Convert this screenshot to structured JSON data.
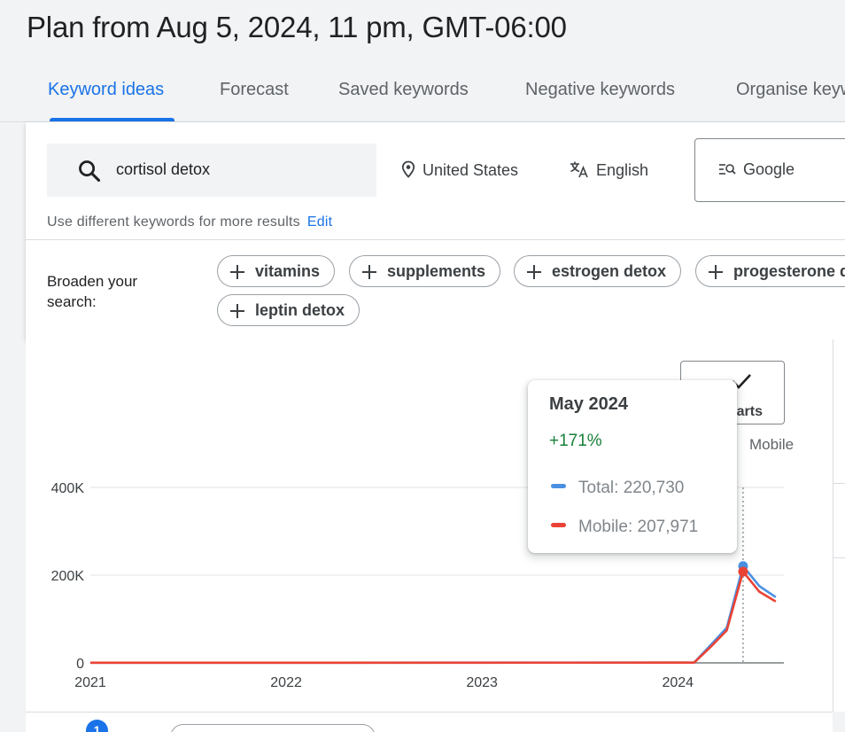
{
  "title": "Plan from Aug 5, 2024, 11 pm, GMT-06:00",
  "tabs": [
    {
      "label": "Keyword ideas",
      "active": true
    },
    {
      "label": "Forecast"
    },
    {
      "label": "Saved keywords"
    },
    {
      "label": "Negative keywords"
    },
    {
      "label": "Organise keywords"
    }
  ],
  "search": {
    "value": "cortisol detox"
  },
  "filters": {
    "location": "United States",
    "language": "English",
    "network": "Google"
  },
  "hint": {
    "text": "Use different keywords for more results",
    "edit_label": "Edit"
  },
  "broaden": {
    "label": "Broaden your search:",
    "chips": [
      "vitamins",
      "supplements",
      "estrogen detox",
      "progesterone detox",
      "leptin detox"
    ]
  },
  "charts_button": {
    "label": "Charts"
  },
  "legend": {
    "mobile": "Mobile"
  },
  "tooltip": {
    "title": "May 2024",
    "change": "+171%",
    "total": "Total: 220,730",
    "mobile": "Mobile: 207,971"
  },
  "pager": {
    "badge": "1"
  },
  "colors": {
    "accent": "#1a73e8",
    "total": "#4a90e2",
    "mobile": "#ea4335",
    "positive": "#188038"
  },
  "chart_data": {
    "type": "line",
    "x_ticks": [
      "2021",
      "2022",
      "2023",
      "2024"
    ],
    "y_ticks": [
      "0",
      "200K",
      "400K"
    ],
    "ylim": [
      0,
      400000
    ],
    "x": [
      "2021-01",
      "2022-01",
      "2023-01",
      "2024-01",
      "2024-02",
      "2024-03",
      "2024-04",
      "2024-05",
      "2024-06",
      "2024-07"
    ],
    "series": [
      {
        "name": "Total",
        "values": [
          500,
          500,
          600,
          700,
          800,
          40000,
          80000,
          220730,
          175000,
          150000
        ]
      },
      {
        "name": "Mobile",
        "values": [
          400,
          400,
          500,
          600,
          700,
          36000,
          74000,
          207971,
          162000,
          140000
        ]
      }
    ],
    "highlight": {
      "x": "2024-05",
      "label": "May 2024"
    }
  }
}
